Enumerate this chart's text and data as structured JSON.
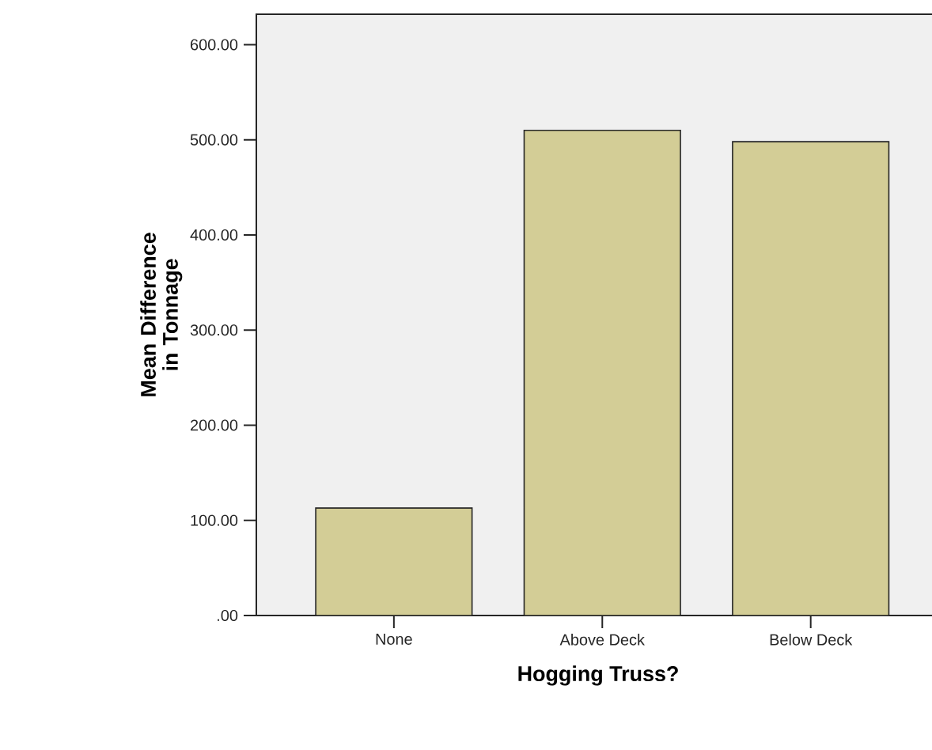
{
  "chart_data": {
    "type": "bar",
    "xlabel": "Hogging Truss?",
    "ylabel": "Mean Difference in Tonnage",
    "categories": [
      "None",
      "Above Deck",
      "Below Deck"
    ],
    "values": [
      113,
      510,
      498
    ],
    "color": "#d3cd96",
    "ylim": [
      0,
      632
    ],
    "yticks": [
      {
        "value": 0,
        "label": ".00"
      },
      {
        "value": 100,
        "label": "100.00"
      },
      {
        "value": 200,
        "label": "200.00"
      },
      {
        "value": 300,
        "label": "300.00"
      },
      {
        "value": 400,
        "label": "400.00"
      },
      {
        "value": 500,
        "label": "500.00"
      },
      {
        "value": 600,
        "label": "600.00"
      }
    ],
    "grid": false
  }
}
